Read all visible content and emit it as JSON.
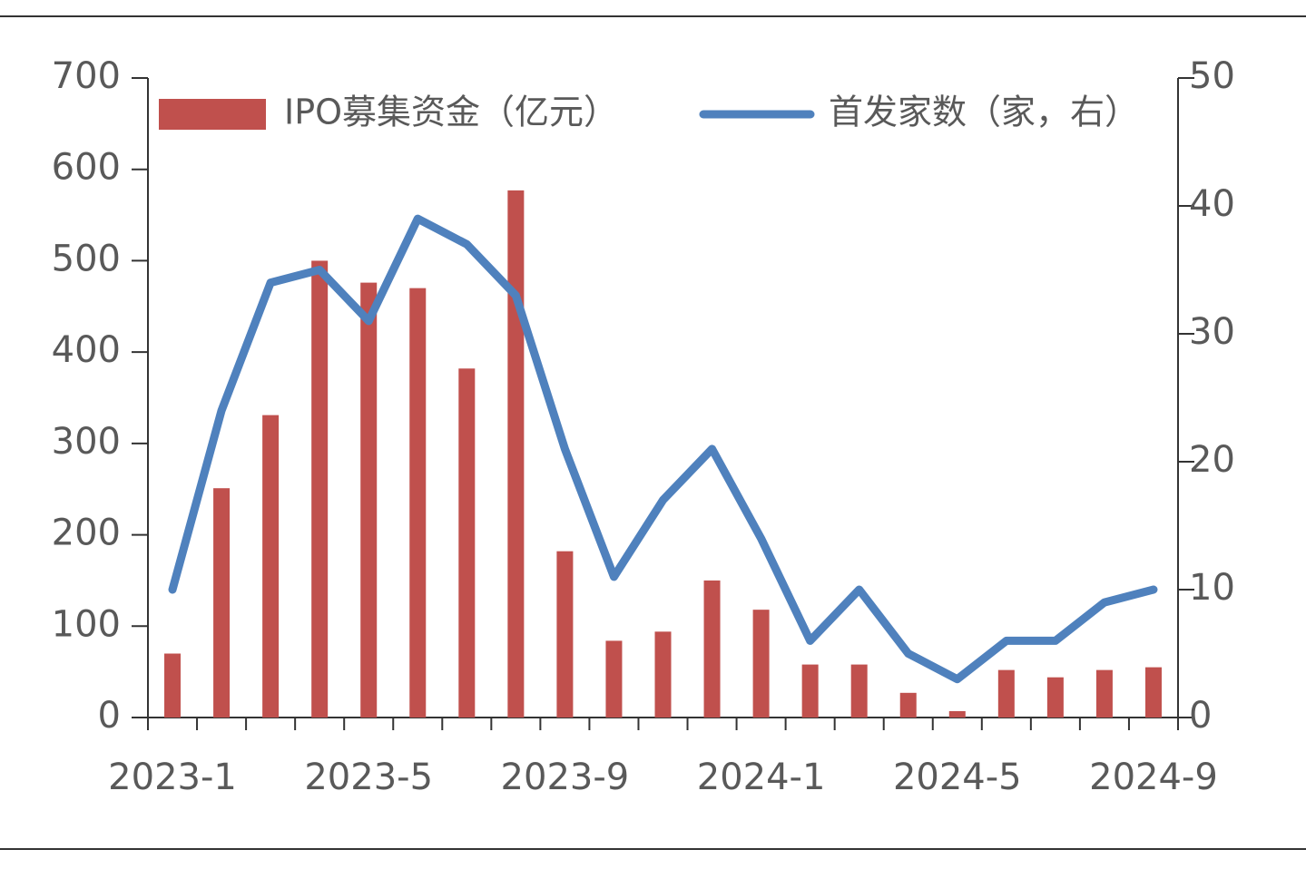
{
  "chart_data": {
    "type": "bar_line",
    "categories": [
      "2023-1",
      null,
      null,
      null,
      "2023-5",
      null,
      null,
      null,
      "2023-9",
      null,
      null,
      null,
      "2024-1",
      null,
      null,
      null,
      "2024-5",
      null,
      null,
      null,
      "2024-9"
    ],
    "series": [
      {
        "name": "IPO募集资金（亿元）",
        "color": "#c0504d",
        "type": "bar",
        "axis": "y",
        "values": [
          70,
          251,
          331,
          500,
          476,
          470,
          382,
          577,
          182,
          84,
          94,
          150,
          118,
          58,
          58,
          27,
          7,
          52,
          44,
          52,
          55
        ]
      },
      {
        "name": "首发家数（家，右）",
        "color": "#4f81bd",
        "type": "line",
        "axis": "y2",
        "values": [
          10,
          24,
          34,
          35,
          31,
          39,
          37,
          33,
          21,
          11,
          17,
          21,
          14,
          6,
          10,
          5,
          3,
          6,
          6,
          9,
          10
        ]
      }
    ],
    "ylim": [
      0,
      700
    ],
    "yticks": [
      0,
      100,
      200,
      300,
      400,
      500,
      600,
      700
    ],
    "y2lim": [
      0,
      50
    ],
    "y2ticks": [
      0,
      10,
      20,
      30,
      40,
      50
    ],
    "legend": "top"
  }
}
